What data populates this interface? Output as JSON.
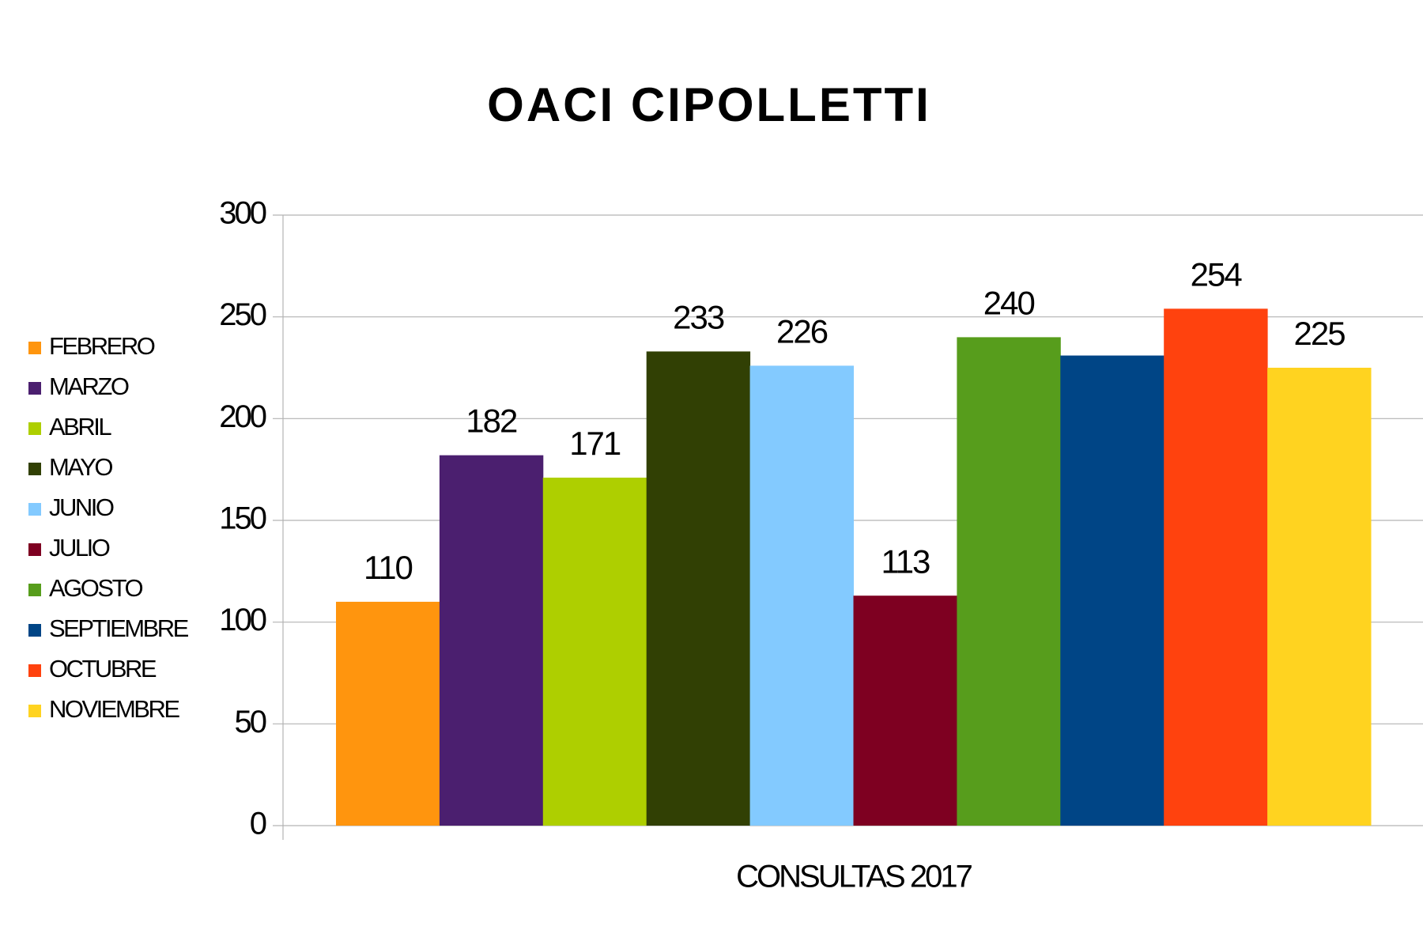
{
  "chart_data": {
    "type": "bar",
    "title": "OACI CIPOLLETTI",
    "categories": [
      "CONSULTAS 2017"
    ],
    "series": [
      {
        "name": "FEBRERO",
        "color": "#ff950e",
        "values": [
          110
        ]
      },
      {
        "name": "MARZO",
        "color": "#4b1f6f",
        "values": [
          182
        ]
      },
      {
        "name": "ABRIL",
        "color": "#aecf00",
        "values": [
          171
        ]
      },
      {
        "name": "MAYO",
        "color": "#314004",
        "values": [
          233
        ]
      },
      {
        "name": "JUNIO",
        "color": "#83caff",
        "values": [
          226
        ]
      },
      {
        "name": "JULIO",
        "color": "#7e0021",
        "values": [
          113
        ]
      },
      {
        "name": "AGOSTO",
        "color": "#579d1c",
        "values": [
          240
        ]
      },
      {
        "name": "SEPTIEMBRE",
        "color": "#004586",
        "values": [
          231
        ],
        "show_label": false
      },
      {
        "name": "OCTUBRE",
        "color": "#ff420e",
        "values": [
          254
        ]
      },
      {
        "name": "NOVIEMBRE",
        "color": "#ffd320",
        "values": [
          225
        ]
      }
    ],
    "ylim": [
      0,
      300
    ],
    "yticks": [
      0,
      50,
      100,
      150,
      200,
      250,
      300
    ],
    "grid": true,
    "legend": "left"
  }
}
